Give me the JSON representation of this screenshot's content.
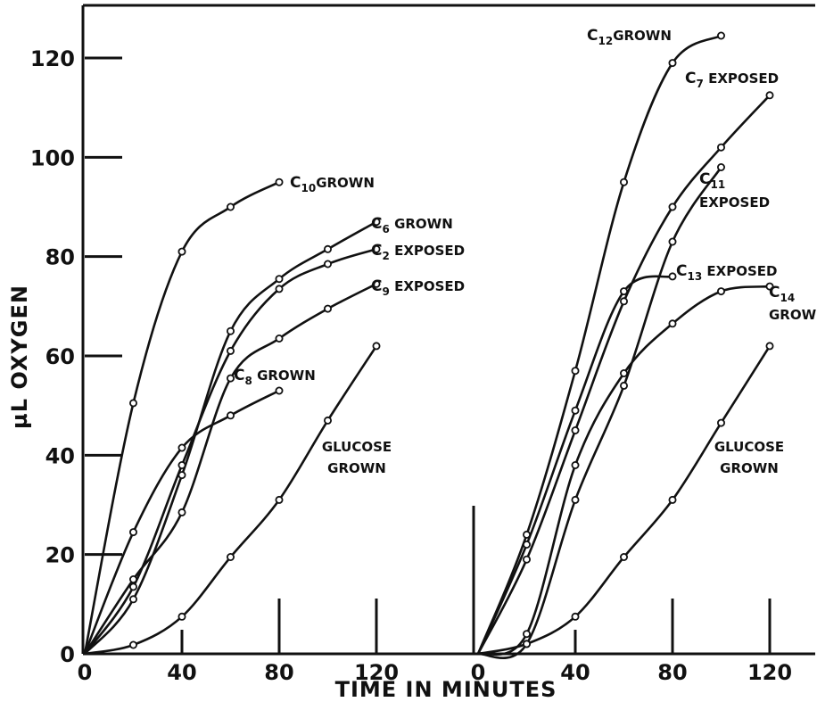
{
  "chart_data": {
    "type": "line",
    "title": "",
    "ylabel": "µL OXYGEN",
    "xlabel": "TIME IN MINUTES",
    "ylim": [
      0,
      130
    ],
    "y_ticks": [
      "0",
      "20",
      "40",
      "60",
      "80",
      "100",
      "120"
    ],
    "x_ticks": [
      "0",
      "40",
      "80",
      "120"
    ],
    "grid": false,
    "panels": [
      {
        "xlim": [
          0,
          120
        ],
        "series": [
          {
            "name": "C10 GROWN",
            "label_main": "C",
            "label_sub": "10",
            "label_rest": "GROWN",
            "x": [
              0,
              20,
              40,
              60,
              80
            ],
            "y": [
              0,
              50.5,
              81,
              90,
              95
            ]
          },
          {
            "name": "C6 GROWN",
            "label_main": "C",
            "label_sub": "6",
            "label_rest": " GROWN",
            "x": [
              0,
              20,
              40,
              60,
              80,
              100,
              120
            ],
            "y": [
              0,
              11,
              36,
              65,
              75.5,
              81.5,
              87
            ]
          },
          {
            "name": "C2 EXPOSED",
            "label_main": "C",
            "label_sub": "2",
            "label_rest": " EXPOSED",
            "x": [
              0,
              20,
              40,
              60,
              80,
              100,
              120
            ],
            "y": [
              0,
              13.5,
              38,
              61,
              73.5,
              78.5,
              81.5
            ]
          },
          {
            "name": "C9 EXPOSED",
            "label_main": "C",
            "label_sub": "9",
            "label_rest": " EXPOSED",
            "x": [
              0,
              20,
              40,
              60,
              80,
              100,
              120
            ],
            "y": [
              0,
              15,
              28.5,
              55.5,
              63.5,
              69.5,
              74.5
            ]
          },
          {
            "name": "C8 GROWN",
            "label_main": "C",
            "label_sub": "8",
            "label_rest": " GROWN",
            "x": [
              0,
              20,
              40,
              60,
              80
            ],
            "y": [
              0,
              24.5,
              41.5,
              48,
              53
            ]
          },
          {
            "name": "GLUCOSE GROWN",
            "label_lines": [
              "GLUCOSE",
              "GROWN"
            ],
            "x": [
              0,
              20,
              40,
              60,
              80,
              100,
              120
            ],
            "y": [
              0,
              1.8,
              7.5,
              19.5,
              31,
              47,
              62
            ]
          }
        ]
      },
      {
        "xlim": [
          0,
          120
        ],
        "series": [
          {
            "name": "C12 GROWN",
            "label_main": "C",
            "label_sub": "12",
            "label_rest": "GROWN",
            "x": [
              0,
              20,
              40,
              60,
              80,
              100
            ],
            "y": [
              0,
              24,
              57,
              95,
              119,
              124.5
            ]
          },
          {
            "name": "C7 EXPOSED",
            "label_main": "C",
            "label_sub": "7",
            "label_rest": " EXPOSED",
            "x": [
              0,
              20,
              40,
              60,
              80,
              100,
              120
            ],
            "y": [
              0,
              19,
              45,
              71,
              90,
              102,
              112.5
            ]
          },
          {
            "name": "C11 EXPOSED",
            "label_main": "C",
            "label_sub": "11",
            "label_rest": "",
            "label_line2": "EXPOSED",
            "x": [
              0,
              20,
              40,
              60,
              80,
              100
            ],
            "y": [
              0,
              2,
              31,
              54,
              83,
              98
            ]
          },
          {
            "name": "C13 EXPOSED",
            "label_main": "C",
            "label_sub": "13",
            "label_rest": " EXPOSED",
            "x": [
              0,
              20,
              40,
              60,
              80
            ],
            "y": [
              0,
              22,
              49,
              73,
              76
            ]
          },
          {
            "name": "C14 GROWN",
            "label_main": "C",
            "label_sub": "14",
            "label_rest": "",
            "label_line2": "GROWN",
            "x": [
              0,
              20,
              40,
              60,
              80,
              100,
              120
            ],
            "y": [
              0,
              4,
              38,
              56.5,
              66.5,
              73,
              74
            ]
          },
          {
            "name": "GLUCOSE GROWN",
            "label_lines": [
              "GLUCOSE",
              "GROWN"
            ],
            "x": [
              0,
              20,
              40,
              60,
              80,
              100,
              120
            ],
            "y": [
              0,
              2,
              7.5,
              19.5,
              31,
              46.5,
              62
            ]
          }
        ]
      }
    ]
  }
}
